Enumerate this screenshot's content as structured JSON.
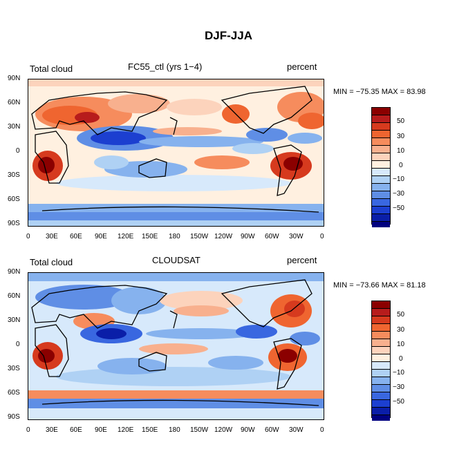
{
  "title": "DJF-JJA",
  "lat_labels": [
    "90N",
    "60N",
    "30N",
    "0",
    "30S",
    "60S",
    "90S"
  ],
  "lon_labels": [
    "0",
    "30E",
    "60E",
    "90E",
    "120E",
    "150E",
    "180",
    "150W",
    "120W",
    "90W",
    "60W",
    "30W",
    "0"
  ],
  "colorbar_labels": [
    "50",
    "30",
    "10",
    "0",
    "−10",
    "−30",
    "−50"
  ],
  "colors": {
    "levels": [
      "#8b0000",
      "#b71c1c",
      "#d63a1e",
      "#ef6530",
      "#f68c5d",
      "#f8b08e",
      "#fcd3bc",
      "#fff0e0",
      "#d7e9fb",
      "#afd1f4",
      "#86b2ee",
      "#5f8ee5",
      "#3967e0",
      "#1c3fd0",
      "#0a1ea8",
      "#000080"
    ]
  },
  "panels": [
    {
      "left_label": "Total cloud",
      "center_label": "FC55_ctl (yrs 1−4)",
      "right_label": "percent",
      "min_max": "MIN = −75.35 MAX =  83.98"
    },
    {
      "left_label": "Total cloud",
      "center_label": "CLOUDSAT",
      "right_label": "percent",
      "min_max": "MIN = −73.66 MAX =  81.18"
    }
  ]
}
